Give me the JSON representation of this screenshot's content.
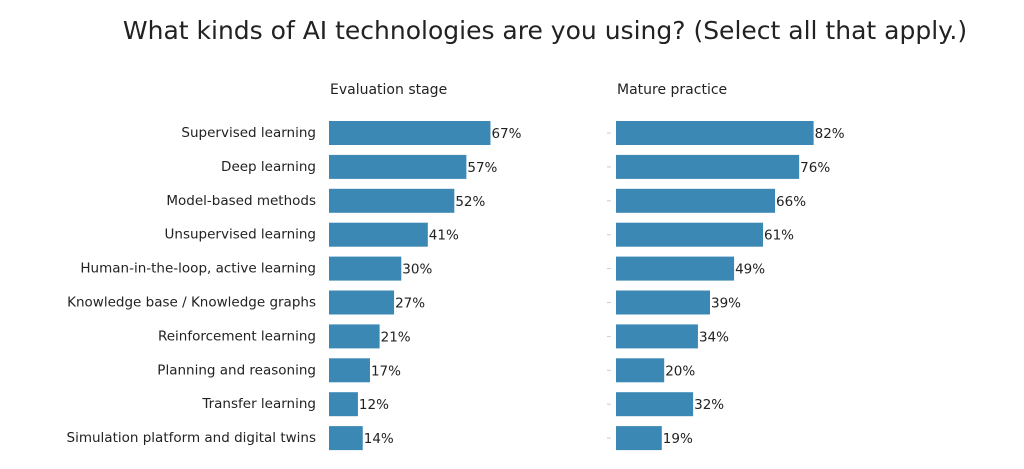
{
  "title": "What kinds of AI technologies are you using? (Select all that apply.)",
  "chart_data": [
    {
      "type": "bar",
      "subtitle": "Evaluation stage",
      "color": "#3b88b5",
      "categories": [
        "Supervised learning",
        "Deep learning",
        "Model-based methods",
        "Unsupervised learning",
        "Human-in-the-loop, active learning",
        "Knowledge base / Knowledge graphs",
        "Reinforcement learning",
        "Planning and reasoning",
        "Transfer learning",
        "Simulation platform and digital twins"
      ],
      "values": [
        67,
        57,
        52,
        41,
        30,
        27,
        21,
        17,
        12,
        14
      ],
      "value_labels": [
        "67%",
        "57%",
        "52%",
        "41%",
        "30%",
        "27%",
        "21%",
        "17%",
        "12%",
        "14%"
      ]
    },
    {
      "type": "bar",
      "subtitle": "Mature practice",
      "color": "#3b88b5",
      "values": [
        82,
        76,
        66,
        61,
        49,
        39,
        34,
        20,
        32,
        19
      ],
      "value_labels": [
        "82%",
        "76%",
        "66%",
        "61%",
        "49%",
        "39%",
        "34%",
        "20%",
        "32%",
        "19%"
      ]
    }
  ]
}
